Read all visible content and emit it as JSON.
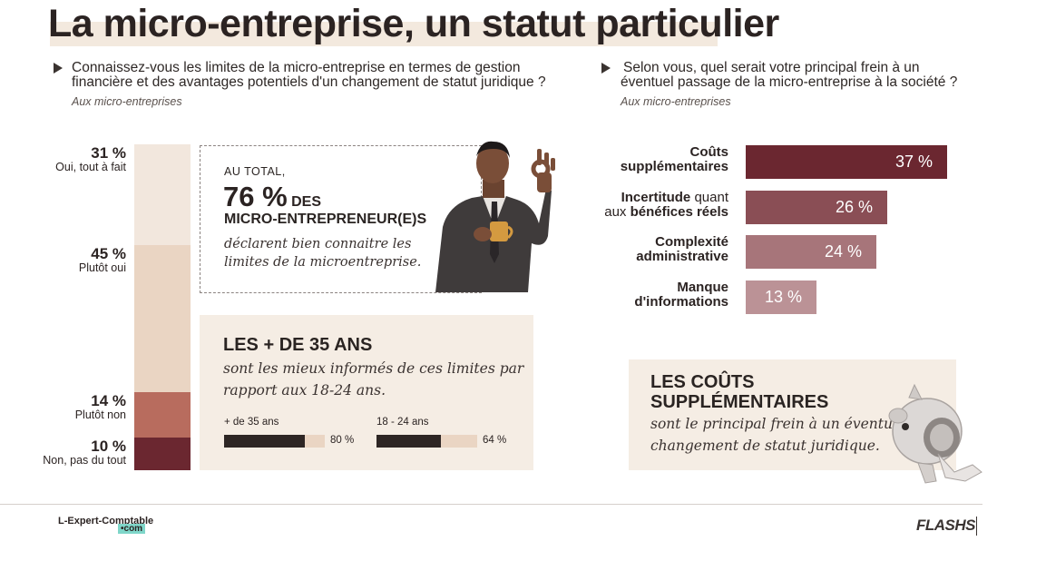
{
  "title": "La micro-entreprise, un statut particulier",
  "left_question": {
    "line1": "Connaissez-vous les limites de la micro-entreprise en termes de gestion",
    "line2": "financière et des avantages potentiels d'un changement de statut juridique ?",
    "sub": "Aux micro-entreprises"
  },
  "right_question": {
    "line1": "Selon vous, quel serait votre principal frein à un",
    "line2": "éventuel passage de la micro-entreprise à la société ?",
    "sub": "Aux micro-entreprises"
  },
  "callout_total": {
    "kicker": "AU TOTAL,",
    "big": "76 %",
    "des": "DES",
    "who": "MICRO-ENTREPRENEUR(E)S",
    "line1": "déclarent bien connaitre les",
    "line2": "limites de la microentreprise."
  },
  "callout_age": {
    "heading": "LES + DE 35 ANS",
    "line1": "sont les mieux informés de ces limites par",
    "line2": "rapport aux 18-24 ans."
  },
  "callout_costs": {
    "heading1": "LES COÛTS",
    "heading2": "SUPPLÉMENTAIRES",
    "line1": "sont le principal frein à un éventuel",
    "line2": "changement de statut juridique."
  },
  "footer": {
    "brand": "L-Expert-Comptable",
    "brand_suffix": "•com",
    "right_logo": "FLASHS"
  },
  "colors": {
    "bar_dark": "#6b2730",
    "bar_mid": "#8a4e55",
    "bar_light": "#a7757a",
    "bar_lighter": "#bb9296",
    "stack_1": "#f2e7dd",
    "stack_2": "#ead5c3",
    "stack_3": "#b86c5e",
    "stack_4": "#6b2730"
  },
  "chart_data": [
    {
      "type": "bar",
      "orientation": "stacked-vertical",
      "categories": [
        "Oui, tout à fait",
        "Plutôt oui",
        "Plutôt non",
        "Non, pas du tout"
      ],
      "values": [
        31,
        45,
        14,
        10
      ],
      "value_labels": [
        "31 %",
        "45 %",
        "14 %",
        "10 %"
      ]
    },
    {
      "type": "bar",
      "orientation": "horizontal",
      "categories": [
        "+ de 35 ans",
        "18 - 24 ans"
      ],
      "values": [
        80,
        64
      ],
      "value_labels": [
        "80 %",
        "64 %"
      ],
      "xlim": [
        0,
        100
      ]
    },
    {
      "type": "bar",
      "orientation": "horizontal",
      "categories": [
        [
          "",
          "Coûts",
          "",
          "supplémentaires"
        ],
        [
          "",
          "Incertitude",
          " quant",
          "aux ",
          "bénéfices réels"
        ],
        [
          "",
          "Complexité",
          "",
          "administrative"
        ],
        [
          "",
          "Manque",
          "",
          "d'informations"
        ]
      ],
      "values": [
        37,
        26,
        24,
        13
      ],
      "value_labels": [
        "37 %",
        "26 %",
        "24 %",
        "13 %"
      ],
      "xlim": [
        0,
        37
      ]
    }
  ]
}
